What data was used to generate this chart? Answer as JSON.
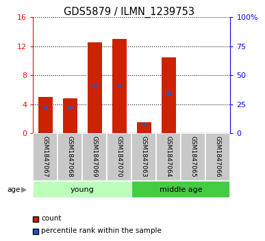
{
  "title": "GDS5879 / ILMN_1239753",
  "samples": [
    "GSM1847067",
    "GSM1847068",
    "GSM1847069",
    "GSM1847070",
    "GSM1847063",
    "GSM1847064",
    "GSM1847065",
    "GSM1847066"
  ],
  "count_values": [
    5.0,
    4.8,
    12.5,
    13.0,
    1.5,
    10.5,
    0.0,
    0.0
  ],
  "percentile_values": [
    22.0,
    22.0,
    41.0,
    41.0,
    8.0,
    34.0,
    0.0,
    0.0
  ],
  "left_ylim": [
    0,
    16
  ],
  "right_ylim": [
    0,
    100
  ],
  "left_yticks": [
    0,
    4,
    8,
    12,
    16
  ],
  "right_yticks": [
    0,
    25,
    50,
    75,
    100
  ],
  "right_yticklabels": [
    "0",
    "25",
    "50",
    "75",
    "100%"
  ],
  "bar_color": "#cc2200",
  "percentile_color": "#2255cc",
  "bar_width": 0.6,
  "groups": [
    {
      "label": "young",
      "indices": [
        0,
        1,
        2,
        3
      ],
      "color": "#bbffbb"
    },
    {
      "label": "middle age",
      "indices": [
        4,
        5,
        6,
        7
      ],
      "color": "#44cc44"
    }
  ],
  "age_label": "age",
  "legend_items": [
    {
      "color": "#cc2200",
      "label": "count"
    },
    {
      "color": "#2255cc",
      "label": "percentile rank within the sample"
    }
  ],
  "grid_color": "black",
  "tick_label_bg": "#c8c8c8",
  "title_fontsize": 10.5
}
